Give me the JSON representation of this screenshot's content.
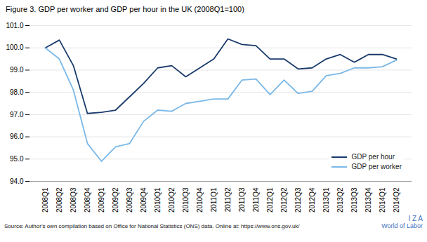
{
  "chart_data": {
    "type": "line",
    "title": "Figure 3. GDP per worker and GDP per hour in the UK (2008Q1=100)",
    "source": "Source: Author's own compilation based on Office for National Statistics (ONS) data. Online at: https://www.ons.gov.uk/",
    "annotations": [
      {
        "text": "I Z A",
        "color": "#4472c4"
      },
      {
        "text": "World of Labor",
        "color": "#4472c4"
      }
    ],
    "categories": [
      "2008Q1",
      "2008Q2",
      "2008Q3",
      "2008Q4",
      "2009Q1",
      "2009Q2",
      "2009Q3",
      "2009Q4",
      "2010Q1",
      "2010Q2",
      "2010Q3",
      "2010Q4",
      "2011Q1",
      "2011Q2",
      "2011Q3",
      "2011Q4",
      "2012Q1",
      "2012Q2",
      "2012Q3",
      "2012Q4",
      "2013Q1",
      "2013Q2",
      "2013Q3",
      "2013Q4",
      "2014Q1",
      "2014Q2"
    ],
    "series": [
      {
        "name": "GDP per hour",
        "color": "#1a3a6b",
        "values": [
          100.0,
          100.35,
          99.2,
          97.05,
          97.1,
          97.2,
          97.8,
          98.4,
          99.1,
          99.2,
          98.7,
          99.1,
          99.5,
          100.4,
          100.15,
          100.1,
          99.5,
          99.5,
          99.05,
          99.1,
          99.5,
          99.7,
          99.35,
          99.7,
          99.7,
          99.5
        ]
      },
      {
        "name": "GDP per worker",
        "color": "#7ab8e8",
        "values": [
          100.0,
          99.5,
          98.1,
          95.7,
          94.9,
          95.55,
          95.7,
          96.7,
          97.2,
          97.15,
          97.5,
          97.6,
          97.7,
          97.7,
          98.55,
          98.6,
          97.9,
          98.55,
          97.95,
          98.05,
          98.75,
          98.85,
          99.1,
          99.1,
          99.15,
          99.45
        ]
      }
    ],
    "ylim": [
      94,
      101
    ],
    "yticks": [
      94,
      95,
      96,
      97,
      98,
      99,
      100,
      101
    ],
    "grid": true,
    "legend": "lower right"
  }
}
